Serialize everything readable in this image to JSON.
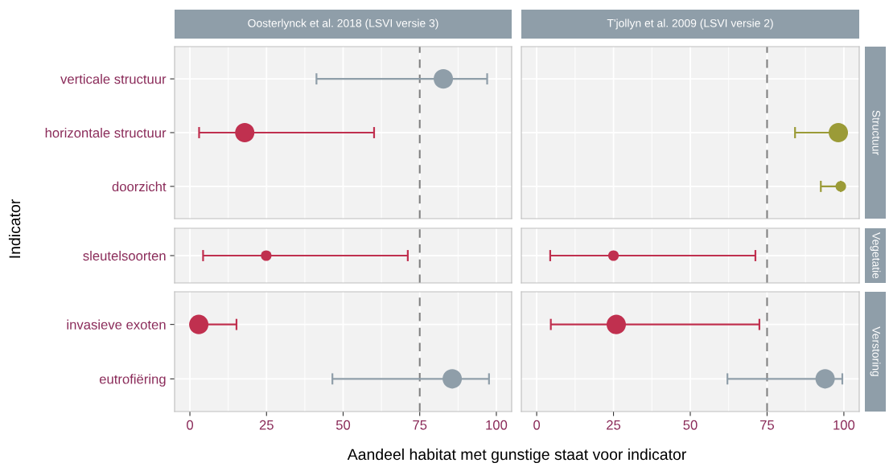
{
  "chart_data": [
    {
      "type": "bubble",
      "orientation": "horizontal",
      "title": "Oosterlynck et al. 2018 (LSVI versie 3)",
      "categories": [
        "verticale structuur",
        "horizontale structuur",
        "doorzicht"
      ],
      "values": [
        82.7,
        17.9,
        null
      ],
      "errors": [
        [
          41.3,
          97
        ],
        [
          3.0,
          60.1
        ],
        null
      ],
      "sizes": [
        1,
        1,
        null
      ],
      "colors": [
        "#8f9ea9",
        "#c0304f",
        null
      ],
      "xlim": [
        -5,
        105
      ],
      "xticks": [
        0,
        25,
        50,
        75,
        100
      ],
      "ref_lines": [
        {
          "axis": "x",
          "value": 75,
          "color": "#808080",
          "line_style": "dashed"
        }
      ],
      "grid": true,
      "tick_labels": "y"
    },
    {
      "type": "bubble",
      "orientation": "horizontal",
      "title": "T'jollyn et al. 2009 (LSVI versie 2)",
      "y2label": "Structuur",
      "categories": [
        null,
        null,
        null
      ],
      "values": [
        null,
        98.2,
        99.0
      ],
      "errors": [
        null,
        [
          84.1,
          98.2
        ],
        [
          92.5,
          99.0
        ]
      ],
      "sizes": [
        null,
        1,
        0.3
      ],
      "colors": [
        null,
        "#9b9b37",
        "#9b9b37"
      ],
      "xlim": [
        -5,
        105
      ],
      "xticks": [
        0,
        25,
        50,
        75,
        100
      ],
      "ref_lines": [
        {
          "axis": "x",
          "value": 75,
          "color": "#808080",
          "line_style": "dashed"
        }
      ],
      "grid": true,
      "tick_labels": false
    },
    {
      "type": "scatter",
      "orientation": "horizontal",
      "ylabel": "Indicator",
      "categories": [
        "sleutelsoorten"
      ],
      "values": [
        24.9
      ],
      "errors": [
        [
          4.3,
          71.1
        ]
      ],
      "colors": [
        "#c0304f"
      ],
      "xlim": [
        -5,
        105
      ],
      "xticks": [
        0,
        25,
        50,
        75,
        100
      ],
      "ref_lines": [
        {
          "axis": "x",
          "value": 75,
          "color": "#808080",
          "line_style": "dashed"
        }
      ],
      "grid": true,
      "tick_labels": "y"
    },
    {
      "type": "scatter",
      "orientation": "horizontal",
      "y2label": "Vegetatie",
      "categories": [
        null
      ],
      "values": [
        25.0
      ],
      "errors": [
        [
          4.4,
          71.2
        ]
      ],
      "colors": [
        "#c0304f"
      ],
      "xlim": [
        -5,
        105
      ],
      "xticks": [
        0,
        25,
        50,
        75,
        100
      ],
      "ref_lines": [
        {
          "axis": "x",
          "value": 75,
          "color": "#808080",
          "line_style": "dashed"
        }
      ],
      "grid": true,
      "tick_labels": false
    },
    {
      "type": "bubble",
      "orientation": "horizontal",
      "xlabel": "Aandeel habitat met gunstige staat voor indicator",
      "categories": [
        "invasieve exoten",
        "eutrofiëring"
      ],
      "values": [
        2.9,
        85.6
      ],
      "errors": [
        [
          2.9,
          15.2
        ],
        [
          46.5,
          97.6
        ]
      ],
      "sizes": [
        1,
        1
      ],
      "colors": [
        "#c0304f",
        "#8f9ea9"
      ],
      "xlim": [
        -5,
        105
      ],
      "xticks": [
        0,
        25,
        50,
        75,
        100
      ],
      "ref_lines": [
        {
          "axis": "x",
          "value": 75,
          "color": "#808080",
          "line_style": "dashed"
        }
      ],
      "grid": true
    },
    {
      "type": "bubble",
      "orientation": "horizontal",
      "y2label": "Verstoring",
      "categories": [
        null,
        null
      ],
      "values": [
        25.9,
        93.9
      ],
      "errors": [
        [
          4.6,
          72.5
        ],
        [
          62.1,
          99.5
        ]
      ],
      "sizes": [
        1,
        1
      ],
      "colors": [
        "#c0304f",
        "#8f9ea9"
      ],
      "xlim": [
        -5,
        105
      ],
      "xticks": [
        0,
        25,
        50,
        75,
        100
      ],
      "ref_lines": [
        {
          "axis": "x",
          "value": 75,
          "color": "#808080",
          "line_style": "dashed"
        }
      ],
      "grid": true,
      "tick_labels": "x"
    }
  ]
}
